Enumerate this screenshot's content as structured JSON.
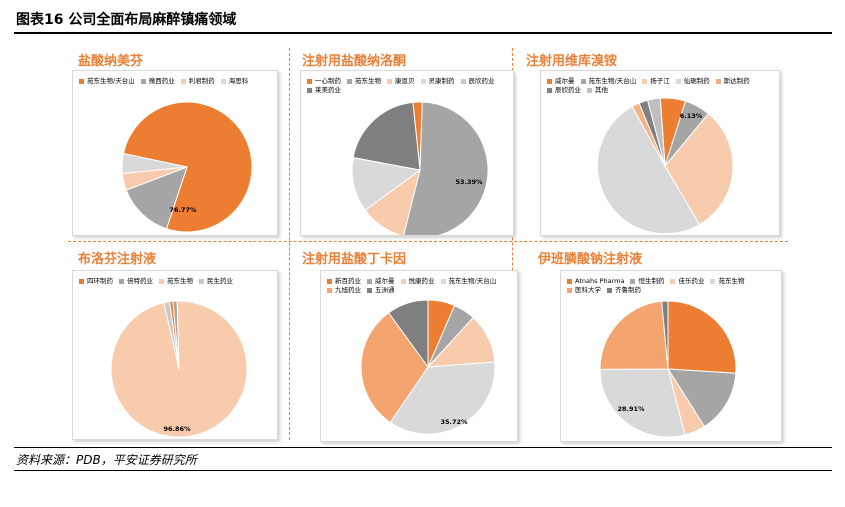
{
  "figure": {
    "title": "图表16   公司全面布局麻醉镇痛领域",
    "source": "资料来源：PDB，平安证券研究所"
  },
  "chart_data": [
    {
      "type": "pie",
      "title": "盐酸纳美芬",
      "series": [
        {
          "labels": [
            "苑东生物/天台山",
            "豫西药业",
            "利君制药",
            "海思科"
          ],
          "values": [
            76.77,
            14.1,
            4.2,
            4.93
          ],
          "colors": [
            "#ed7d31",
            "#a5a5a5",
            "#f8cbad",
            "#d9d9d9"
          ]
        }
      ],
      "data_labels": [
        {
          "index": 0,
          "text": "76.77%"
        }
      ]
    },
    {
      "type": "pie",
      "title": "注射用盐酸纳洛酮",
      "series": [
        {
          "labels": [
            "一心制药",
            "苑东生物",
            "康恩贝",
            "灵康制药",
            "辰欣药业",
            "莱美药业"
          ],
          "values": [
            2.2,
            53.39,
            11.0,
            13.0,
            0.01,
            20.4
          ],
          "colors": [
            "#ed7d31",
            "#a5a5a5",
            "#f8cbad",
            "#d9d9d9",
            "#c9c9c9",
            "#7f7f7f"
          ]
        }
      ],
      "data_labels": [
        {
          "index": 1,
          "text": "53.39%"
        }
      ]
    },
    {
      "type": "pie",
      "title": "注射用维库溴铵",
      "series": [
        {
          "labels": [
            "威尔曼",
            "苑东生物/天台山",
            "扬子江",
            "仙琚制药",
            "斯达制药",
            "辰欣药业",
            "其他"
          ],
          "values": [
            6.0,
            6.13,
            30.5,
            50.4,
            1.8,
            2.1,
            3.0
          ],
          "colors": [
            "#ed7d31",
            "#a5a5a5",
            "#f8cbad",
            "#d9d9d9",
            "#f4b183",
            "#808080",
            "#bfbfbf"
          ]
        }
      ],
      "data_labels": [
        {
          "index": 1,
          "text": "6.13%"
        }
      ]
    },
    {
      "type": "pie",
      "title": "布洛芬注射液",
      "series": [
        {
          "labels": [
            "四环制药",
            "倍特药业",
            "苑东生物",
            "民生药业"
          ],
          "values": [
            0.8,
            1.0,
            96.86,
            1.34
          ],
          "colors": [
            "#ed7d31",
            "#a5a5a5",
            "#f8cbad",
            "#c9c9c9"
          ]
        }
      ],
      "data_labels": [
        {
          "index": 2,
          "text": "96.86%"
        }
      ]
    },
    {
      "type": "pie",
      "title": "注射用盐酸丁卡因",
      "series": [
        {
          "labels": [
            "新百药业",
            "威尔曼",
            "悦康药业",
            "苑东生物/天台山",
            "九旭药业",
            "五洲通"
          ],
          "values": [
            6.5,
            5.3,
            12.0,
            35.72,
            30.5,
            9.98
          ],
          "colors": [
            "#ed7d31",
            "#a5a5a5",
            "#f8cbad",
            "#d9d9d9",
            "#f4a46e",
            "#7f7f7f"
          ]
        }
      ],
      "data_labels": [
        {
          "index": 3,
          "text": "35.72%"
        }
      ]
    },
    {
      "type": "pie",
      "title": "伊班膦酸钠注射液",
      "series": [
        {
          "labels": [
            "Atnahs Pharma",
            "恒生制药",
            "佳乐药业",
            "苑东生物",
            "医科大学",
            "齐鲁制药"
          ],
          "values": [
            26.0,
            15.0,
            5.0,
            28.91,
            23.6,
            1.49
          ],
          "colors": [
            "#ed7d31",
            "#a5a5a5",
            "#f8cbad",
            "#d9d9d9",
            "#f4a46e",
            "#7f7f7f"
          ]
        }
      ],
      "data_labels": [
        {
          "index": 3,
          "text": "28.91%"
        }
      ]
    }
  ]
}
